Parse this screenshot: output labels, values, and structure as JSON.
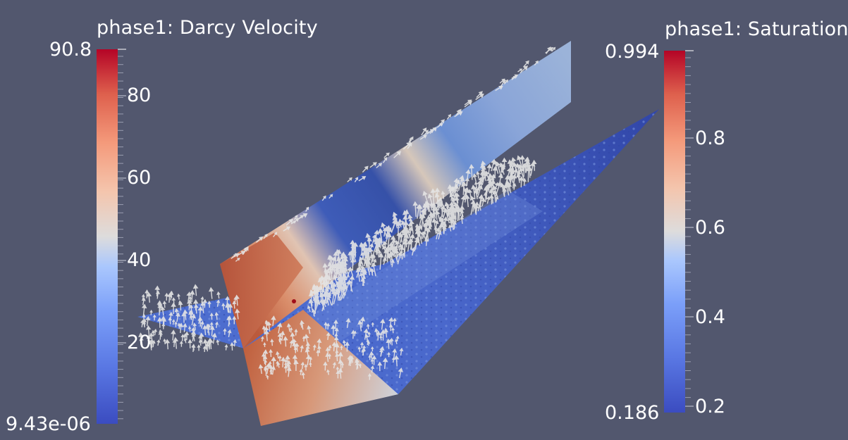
{
  "scene": {
    "background": "#52576e",
    "colormap": [
      "#3b4cc0",
      "#5977e3",
      "#7b9ff9",
      "#9ebeff",
      "#c0d4f5",
      "#dddcdc",
      "#f2cbb7",
      "#f7ac8e",
      "#ee8468",
      "#d65244",
      "#b40426"
    ],
    "arrow_color": "#e6e6e6"
  },
  "colorbars": {
    "velocity": {
      "title": "phase1: Darcy Velocity",
      "max_label": "90.8",
      "min_label": "9.43e-06",
      "ticks": [
        "80",
        "60",
        "40",
        "20"
      ]
    },
    "saturation": {
      "title": "phase1: Saturation",
      "max_label": "0.994",
      "min_label": "0.186",
      "ticks": [
        "0.8",
        "0.6",
        "0.4",
        "0.2"
      ]
    }
  }
}
